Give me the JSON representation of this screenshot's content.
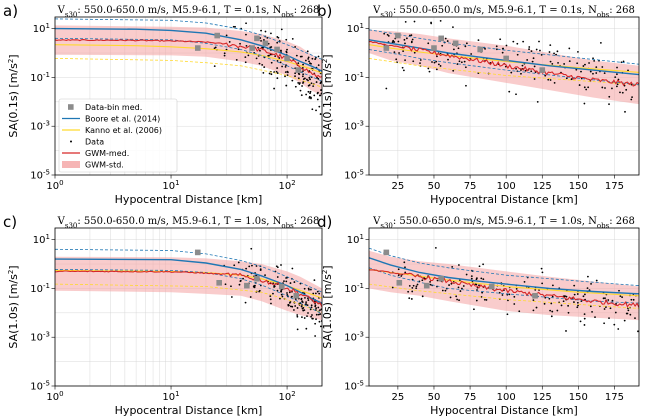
{
  "chart_data": [
    {
      "id": "a",
      "letter": "a)",
      "title": "V$s30$: 550.0-650.0 m/s,   M5.9-6.1, T = 0.1s, N$obs$: 268",
      "type": "scatter",
      "xscale": "log",
      "xlim": [
        1,
        200
      ],
      "ylim": [
        1e-05,
        30
      ],
      "xlabel": "Hypocentral Distance [km]",
      "ylabel": "SA(0.1s) [m/s^2]",
      "xticks": [
        {
          "v": 1,
          "l": "10^0"
        },
        {
          "v": 10,
          "l": "10^1"
        },
        {
          "v": 100,
          "l": "10^2"
        }
      ],
      "yticks": [
        {
          "v": 1e-05,
          "l": "10^-5"
        },
        {
          "v": 0.001,
          "l": "10^-3"
        },
        {
          "v": 0.1,
          "l": "10^-1"
        },
        {
          "v": 10,
          "l": "10^1"
        }
      ],
      "legend": [
        "Data-bin med.",
        "Boore et al. (2014)",
        "Kanno et al. (2006)",
        "Data",
        "GWM-med.",
        "GWM-std."
      ],
      "bin_medians": [
        [
          17,
          1.6
        ],
        [
          25,
          5.2
        ],
        [
          50,
          1.6
        ],
        [
          55,
          4.0
        ],
        [
          65,
          2.5
        ],
        [
          82,
          1.4
        ],
        [
          100,
          0.6
        ],
        [
          125,
          0.2
        ]
      ],
      "gwm_med": [
        [
          1,
          3.4
        ],
        [
          5,
          3.3
        ],
        [
          10,
          3.1
        ],
        [
          20,
          2.8
        ],
        [
          40,
          1.9
        ],
        [
          60,
          1.3
        ],
        [
          80,
          0.85
        ],
        [
          100,
          0.55
        ],
        [
          130,
          0.3
        ],
        [
          160,
          0.15
        ],
        [
          200,
          0.09
        ]
      ],
      "gwm_std": [
        [
          1,
          0.85,
          13.6
        ],
        [
          10,
          0.8,
          12.0
        ],
        [
          20,
          0.7,
          11.0
        ],
        [
          40,
          0.45,
          8.0
        ],
        [
          60,
          0.3,
          6.0
        ],
        [
          100,
          0.12,
          3.0
        ],
        [
          130,
          0.06,
          1.8
        ],
        [
          160,
          0.03,
          0.9
        ],
        [
          200,
          0.018,
          0.5
        ]
      ],
      "boore": [
        [
          1,
          10.0
        ],
        [
          5,
          9.5
        ],
        [
          10,
          8.5
        ],
        [
          20,
          6.5
        ],
        [
          40,
          3.5
        ],
        [
          60,
          2.0
        ],
        [
          80,
          1.2
        ],
        [
          100,
          0.8
        ],
        [
          130,
          0.45
        ],
        [
          160,
          0.3
        ],
        [
          200,
          0.18
        ]
      ],
      "boore_hi": [
        [
          1,
          25.0
        ],
        [
          10,
          22.0
        ],
        [
          20,
          17.0
        ],
        [
          40,
          9.5
        ],
        [
          60,
          5.5
        ],
        [
          100,
          2.2
        ],
        [
          130,
          1.3
        ],
        [
          200,
          0.55
        ]
      ],
      "boore_lo": [
        [
          1,
          4.0
        ],
        [
          10,
          3.5
        ],
        [
          20,
          2.5
        ],
        [
          40,
          1.4
        ],
        [
          60,
          0.8
        ],
        [
          100,
          0.3
        ],
        [
          130,
          0.17
        ],
        [
          200,
          0.07
        ]
      ],
      "kanno": [
        [
          1,
          2.2
        ],
        [
          5,
          2.0
        ],
        [
          10,
          1.8
        ],
        [
          20,
          1.5
        ],
        [
          40,
          1.1
        ],
        [
          60,
          0.8
        ],
        [
          100,
          0.45
        ],
        [
          150,
          0.25
        ],
        [
          200,
          0.15
        ]
      ],
      "kanno_lo": [
        [
          1,
          0.6
        ],
        [
          10,
          0.5
        ],
        [
          20,
          0.4
        ],
        [
          40,
          0.3
        ],
        [
          100,
          0.12
        ],
        [
          200,
          0.04
        ]
      ],
      "data_cluster": {
        "x": [
          20,
          200
        ],
        "center": [
          [
            20,
            2.5
          ],
          [
            60,
            1.0
          ],
          [
            100,
            0.5
          ],
          [
            150,
            0.12
          ],
          [
            200,
            0.05
          ]
        ],
        "spread": 0.55,
        "n": 180
      }
    },
    {
      "id": "b",
      "letter": "b)",
      "title": "V$s30$: 550.0-650.0 m/s,   M5.9-6.1, T = 0.1s, N$obs$: 268",
      "type": "scatter",
      "xscale": "linear",
      "xlim": [
        5,
        192
      ],
      "ylim": [
        1e-05,
        30
      ],
      "xlabel": "Hypocentral Distance [km]",
      "ylabel": "SA(0.1s) [m/s^2]",
      "xticks": [
        {
          "v": 25,
          "l": "25"
        },
        {
          "v": 50,
          "l": "50"
        },
        {
          "v": 75,
          "l": "75"
        },
        {
          "v": 100,
          "l": "100"
        },
        {
          "v": 125,
          "l": "125"
        },
        {
          "v": 150,
          "l": "150"
        },
        {
          "v": 175,
          "l": "175"
        }
      ],
      "yticks": [
        {
          "v": 1e-05,
          "l": "10^-5"
        },
        {
          "v": 0.001,
          "l": "10^-3"
        },
        {
          "v": 0.1,
          "l": "10^-1"
        },
        {
          "v": 10,
          "l": "10^1"
        }
      ],
      "bin_medians": [
        [
          17,
          1.6
        ],
        [
          25,
          5.2
        ],
        [
          50,
          1.6
        ],
        [
          55,
          4.0
        ],
        [
          65,
          2.5
        ],
        [
          82,
          1.4
        ],
        [
          100,
          0.6
        ],
        [
          125,
          0.2
        ]
      ],
      "gwm_med": [
        [
          5,
          3.0
        ],
        [
          20,
          2.0
        ],
        [
          40,
          1.3
        ],
        [
          60,
          0.8
        ],
        [
          80,
          0.5
        ],
        [
          100,
          0.3
        ],
        [
          130,
          0.15
        ],
        [
          160,
          0.08
        ],
        [
          192,
          0.05
        ]
      ],
      "gwm_std": [
        [
          5,
          1.0,
          9.0
        ],
        [
          20,
          0.5,
          8.0
        ],
        [
          40,
          0.3,
          6.0
        ],
        [
          60,
          0.15,
          4.0
        ],
        [
          100,
          0.06,
          2.0
        ],
        [
          130,
          0.03,
          1.0
        ],
        [
          160,
          0.015,
          0.5
        ],
        [
          192,
          0.008,
          0.3
        ]
      ],
      "boore": [
        [
          5,
          3.5
        ],
        [
          20,
          2.5
        ],
        [
          40,
          1.6
        ],
        [
          60,
          1.0
        ],
        [
          80,
          0.7
        ],
        [
          100,
          0.5
        ],
        [
          130,
          0.3
        ],
        [
          160,
          0.2
        ],
        [
          192,
          0.13
        ]
      ],
      "boore_hi": [
        [
          5,
          9.0
        ],
        [
          20,
          6.5
        ],
        [
          40,
          4.0
        ],
        [
          60,
          2.6
        ],
        [
          100,
          1.3
        ],
        [
          160,
          0.55
        ],
        [
          192,
          0.35
        ]
      ],
      "boore_lo": [
        [
          5,
          1.4
        ],
        [
          20,
          1.0
        ],
        [
          40,
          0.6
        ],
        [
          60,
          0.4
        ],
        [
          100,
          0.2
        ],
        [
          160,
          0.08
        ],
        [
          192,
          0.05
        ]
      ],
      "kanno": [
        [
          5,
          2.2
        ],
        [
          20,
          1.6
        ],
        [
          40,
          1.1
        ],
        [
          60,
          0.8
        ],
        [
          100,
          0.45
        ],
        [
          150,
          0.25
        ],
        [
          192,
          0.16
        ]
      ],
      "kanno_lo": [
        [
          5,
          0.6
        ],
        [
          40,
          0.3
        ],
        [
          100,
          0.12
        ],
        [
          192,
          0.05
        ]
      ],
      "data_cluster": {
        "x": [
          15,
          192
        ],
        "center": [
          [
            15,
            2.0
          ],
          [
            60,
            0.9
          ],
          [
            100,
            0.45
          ],
          [
            150,
            0.15
          ],
          [
            192,
            0.06
          ]
        ],
        "spread": 0.5,
        "n": 200
      }
    },
    {
      "id": "c",
      "letter": "c)",
      "title": "V$s30$: 550.0-650.0 m/s,   M5.9-6.1, T = 1.0s, N$obs$: 268",
      "type": "scatter",
      "xscale": "log",
      "xlim": [
        1,
        200
      ],
      "ylim": [
        1e-05,
        30
      ],
      "xlabel": "Hypocentral Distance [km]",
      "ylabel": "SA(1.0s) [m/s^2]",
      "xticks": [
        {
          "v": 1,
          "l": "10^0"
        },
        {
          "v": 10,
          "l": "10^1"
        },
        {
          "v": 100,
          "l": "10^2"
        }
      ],
      "yticks": [
        {
          "v": 1e-05,
          "l": "10^-5"
        },
        {
          "v": 0.001,
          "l": "10^-3"
        },
        {
          "v": 0.1,
          "l": "10^-1"
        },
        {
          "v": 10,
          "l": "10^1"
        }
      ],
      "bin_medians": [
        [
          17,
          3.0
        ],
        [
          26,
          0.17
        ],
        [
          45,
          0.13
        ],
        [
          55,
          0.25
        ],
        [
          90,
          0.12
        ],
        [
          120,
          0.05
        ]
      ],
      "gwm_med": [
        [
          1,
          0.5
        ],
        [
          10,
          0.48
        ],
        [
          20,
          0.42
        ],
        [
          40,
          0.33
        ],
        [
          60,
          0.22
        ],
        [
          100,
          0.1
        ],
        [
          130,
          0.06
        ],
        [
          160,
          0.035
        ],
        [
          200,
          0.02
        ]
      ],
      "gwm_std": [
        [
          1,
          0.08,
          2.0
        ],
        [
          10,
          0.07,
          1.9
        ],
        [
          20,
          0.06,
          1.7
        ],
        [
          40,
          0.05,
          1.3
        ],
        [
          60,
          0.03,
          1.0
        ],
        [
          100,
          0.012,
          0.5
        ],
        [
          130,
          0.008,
          0.3
        ],
        [
          200,
          0.005,
          0.1
        ]
      ],
      "boore": [
        [
          1,
          1.6
        ],
        [
          10,
          1.5
        ],
        [
          20,
          1.1
        ],
        [
          40,
          0.6
        ],
        [
          60,
          0.33
        ],
        [
          100,
          0.13
        ],
        [
          130,
          0.07
        ],
        [
          160,
          0.04
        ],
        [
          200,
          0.025
        ]
      ],
      "boore_hi": [
        [
          1,
          4.0
        ],
        [
          10,
          3.6
        ],
        [
          20,
          2.6
        ],
        [
          40,
          1.4
        ],
        [
          60,
          0.8
        ],
        [
          100,
          0.3
        ],
        [
          200,
          0.07
        ]
      ],
      "boore_lo": [
        [
          1,
          0.6
        ],
        [
          10,
          0.55
        ],
        [
          20,
          0.45
        ],
        [
          40,
          0.25
        ],
        [
          60,
          0.14
        ],
        [
          100,
          0.05
        ],
        [
          200,
          0.009
        ]
      ],
      "kanno": [
        [
          1,
          0.55
        ],
        [
          10,
          0.5
        ],
        [
          20,
          0.45
        ],
        [
          40,
          0.35
        ],
        [
          60,
          0.25
        ],
        [
          100,
          0.13
        ],
        [
          200,
          0.04
        ]
      ],
      "kanno_lo": [
        [
          1,
          0.15
        ],
        [
          20,
          0.12
        ],
        [
          60,
          0.07
        ],
        [
          100,
          0.035
        ],
        [
          200,
          0.01
        ]
      ],
      "data_cluster": {
        "x": [
          25,
          200
        ],
        "center": [
          [
            25,
            0.25
          ],
          [
            60,
            0.15
          ],
          [
            100,
            0.06
          ],
          [
            150,
            0.025
          ],
          [
            200,
            0.012
          ]
        ],
        "spread": 0.45,
        "n": 180
      }
    },
    {
      "id": "d",
      "letter": "d)",
      "title": "V$s30$: 550.0-650.0 m/s,   M5.9-6.1, T = 1.0s, N$obs$: 268",
      "type": "scatter",
      "xscale": "linear",
      "xlim": [
        5,
        192
      ],
      "ylim": [
        1e-05,
        30
      ],
      "xlabel": "Hypocentral Distance [km]",
      "ylabel": "SA(1.0s) [m/s^2]",
      "xticks": [
        {
          "v": 25,
          "l": "25"
        },
        {
          "v": 50,
          "l": "50"
        },
        {
          "v": 75,
          "l": "75"
        },
        {
          "v": 100,
          "l": "100"
        },
        {
          "v": 125,
          "l": "125"
        },
        {
          "v": 150,
          "l": "150"
        },
        {
          "v": 175,
          "l": "175"
        }
      ],
      "yticks": [
        {
          "v": 1e-05,
          "l": "10^-5"
        },
        {
          "v": 0.001,
          "l": "10^-3"
        },
        {
          "v": 0.1,
          "l": "10^-1"
        },
        {
          "v": 10,
          "l": "10^1"
        }
      ],
      "bin_medians": [
        [
          17,
          3.0
        ],
        [
          26,
          0.17
        ],
        [
          45,
          0.13
        ],
        [
          55,
          0.25
        ],
        [
          90,
          0.12
        ],
        [
          120,
          0.05
        ]
      ],
      "gwm_med": [
        [
          5,
          0.6
        ],
        [
          20,
          0.45
        ],
        [
          40,
          0.3
        ],
        [
          60,
          0.2
        ],
        [
          80,
          0.12
        ],
        [
          100,
          0.08
        ],
        [
          130,
          0.05
        ],
        [
          160,
          0.03
        ],
        [
          192,
          0.02
        ]
      ],
      "gwm_std": [
        [
          5,
          0.1,
          3.5
        ],
        [
          20,
          0.07,
          2.0
        ],
        [
          40,
          0.05,
          1.3
        ],
        [
          60,
          0.03,
          1.0
        ],
        [
          100,
          0.012,
          0.5
        ],
        [
          130,
          0.008,
          0.3
        ],
        [
          192,
          0.005,
          0.12
        ]
      ],
      "boore": [
        [
          5,
          1.8
        ],
        [
          20,
          0.9
        ],
        [
          40,
          0.45
        ],
        [
          60,
          0.28
        ],
        [
          80,
          0.2
        ],
        [
          100,
          0.15
        ],
        [
          130,
          0.1
        ],
        [
          160,
          0.075
        ],
        [
          192,
          0.06
        ]
      ],
      "boore_hi": [
        [
          5,
          4.5
        ],
        [
          20,
          2.2
        ],
        [
          40,
          1.1
        ],
        [
          60,
          0.7
        ],
        [
          100,
          0.35
        ],
        [
          160,
          0.18
        ],
        [
          192,
          0.13
        ]
      ],
      "boore_lo": [
        [
          5,
          0.7
        ],
        [
          20,
          0.35
        ],
        [
          40,
          0.18
        ],
        [
          60,
          0.1
        ],
        [
          100,
          0.06
        ],
        [
          160,
          0.03
        ],
        [
          192,
          0.025
        ]
      ],
      "kanno": [
        [
          5,
          0.6
        ],
        [
          20,
          0.45
        ],
        [
          40,
          0.32
        ],
        [
          60,
          0.22
        ],
        [
          100,
          0.12
        ],
        [
          150,
          0.07
        ],
        [
          192,
          0.05
        ]
      ],
      "kanno_lo": [
        [
          5,
          0.15
        ],
        [
          40,
          0.08
        ],
        [
          100,
          0.035
        ],
        [
          192,
          0.015
        ]
      ],
      "data_cluster": {
        "x": [
          20,
          192
        ],
        "center": [
          [
            20,
            0.3
          ],
          [
            60,
            0.15
          ],
          [
            100,
            0.07
          ],
          [
            150,
            0.03
          ],
          [
            192,
            0.015
          ]
        ],
        "spread": 0.45,
        "n": 200
      }
    }
  ],
  "colors": {
    "bin_med": "#8c8c8c",
    "boore": "#1f77b4",
    "kanno": "#ffd92e",
    "data": "#000000",
    "gwm_med": "#d62728",
    "gwm_std": "#f4a3a3"
  }
}
